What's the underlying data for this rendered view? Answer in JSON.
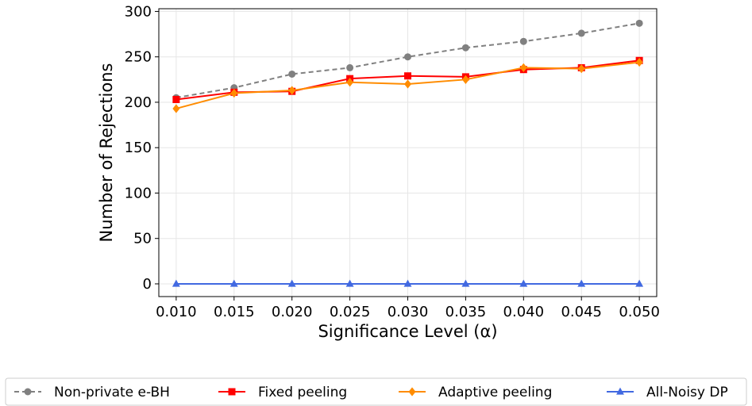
{
  "chart_data": {
    "type": "line",
    "xlabel": "Significance Level (α)",
    "ylabel": "Number of Rejections",
    "x": [
      0.01,
      0.015,
      0.02,
      0.025,
      0.03,
      0.035,
      0.04,
      0.045,
      0.05
    ],
    "x_tick_labels": [
      "0.010",
      "0.015",
      "0.020",
      "0.025",
      "0.030",
      "0.035",
      "0.040",
      "0.045",
      "0.050"
    ],
    "y_ticks": [
      0,
      50,
      100,
      150,
      200,
      250,
      300
    ],
    "xlim": [
      0.0085,
      0.0515
    ],
    "ylim": [
      -14,
      303
    ],
    "grid": true,
    "legend_position": "bottom",
    "series": [
      {
        "name": "Non-private e-BH",
        "color": "#808080",
        "marker": "circle",
        "dashed": true,
        "values": [
          205,
          216,
          231,
          238,
          250,
          260,
          267,
          276,
          287
        ]
      },
      {
        "name": "Fixed peeling",
        "color": "#ff0000",
        "marker": "square",
        "dashed": false,
        "values": [
          203,
          211,
          212,
          226,
          229,
          228,
          236,
          238,
          246
        ]
      },
      {
        "name": "Adaptive peeling",
        "color": "#ff8c00",
        "marker": "diamond",
        "dashed": false,
        "values": [
          193,
          210,
          213,
          222,
          220,
          225,
          238,
          237,
          244
        ]
      },
      {
        "name": "All-Noisy DP",
        "color": "#4169e1",
        "marker": "triangle",
        "dashed": false,
        "values": [
          0,
          0,
          0,
          0,
          0,
          0,
          0,
          0,
          0
        ]
      }
    ]
  }
}
